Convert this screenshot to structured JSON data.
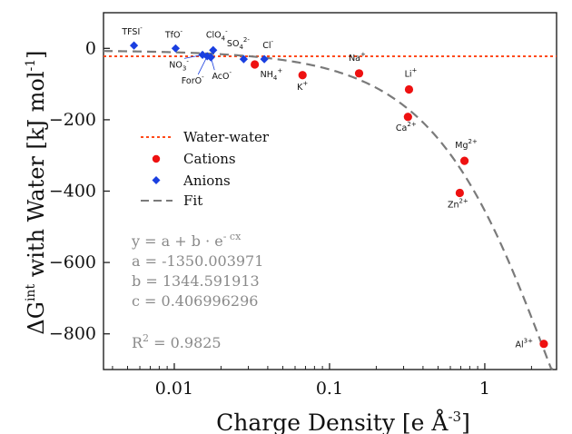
{
  "chart_data": {
    "type": "scatter",
    "xlabel": "Charge Density [e Å",
    "xlabel_sup": "-3",
    "xlabel_end": "]",
    "ylabel_a": "ΔG",
    "ylabel_sup": "int",
    "ylabel_b": " with Water [kJ mol",
    "ylabel_sup2": "-1",
    "ylabel_end": "]",
    "x_scale": "log",
    "xlim": [
      0.0035,
      2.9
    ],
    "ylim": [
      -900,
      100
    ],
    "xticks": [
      {
        "v": 0.01,
        "label": "0.01"
      },
      {
        "v": 0.1,
        "label": "0.1"
      },
      {
        "v": 1,
        "label": "1"
      }
    ],
    "yticks": [
      {
        "v": 0,
        "label": "0"
      },
      {
        "v": -200,
        "label": "−200"
      },
      {
        "v": -400,
        "label": "−400"
      },
      {
        "v": -600,
        "label": "−600"
      },
      {
        "v": -800,
        "label": "−800"
      }
    ],
    "water_water": -22,
    "fit": {
      "a": -1350.003971,
      "b": 1344.591913,
      "c": 0.406996296
    },
    "series": [
      {
        "name": "Cations",
        "color": "#ee1111",
        "marker": "circle",
        "points": [
          {
            "label": "NH",
            "sub": "4",
            "sup": "+",
            "x": 0.033,
            "y": -45
          },
          {
            "label": "K",
            "sub": "",
            "sup": "+",
            "x": 0.067,
            "y": -75
          },
          {
            "label": "Na",
            "sub": "",
            "sup": "+",
            "x": 0.155,
            "y": -70
          },
          {
            "label": "Li",
            "sub": "",
            "sup": "+",
            "x": 0.325,
            "y": -115
          },
          {
            "label": "Ca",
            "sub": "",
            "sup": "2+",
            "x": 0.32,
            "y": -192
          },
          {
            "label": "Mg",
            "sub": "",
            "sup": "2+",
            "x": 0.74,
            "y": -315
          },
          {
            "label": "Zn",
            "sub": "",
            "sup": "2+",
            "x": 0.69,
            "y": -405
          },
          {
            "label": "Al",
            "sub": "",
            "sup": "3+",
            "x": 2.4,
            "y": -828
          }
        ]
      },
      {
        "name": "Anions",
        "color": "#1a3fe0",
        "marker": "diamond",
        "points": [
          {
            "label": "TFSI",
            "sub": "",
            "sup": "-",
            "x": 0.0055,
            "y": 8
          },
          {
            "label": "TfO",
            "sub": "",
            "sup": "-",
            "x": 0.0102,
            "y": 0
          },
          {
            "label": "NO",
            "sub": "3",
            "sup": "-",
            "x": 0.0152,
            "y": -18
          },
          {
            "label": "ForO",
            "sub": "",
            "sup": "-",
            "x": 0.0163,
            "y": -22
          },
          {
            "label": "AcO",
            "sub": "",
            "sup": "-",
            "x": 0.0172,
            "y": -25
          },
          {
            "label": "ClO",
            "sub": "4",
            "sup": "-",
            "x": 0.0178,
            "y": -5
          },
          {
            "label": "SO",
            "sub": "4",
            "sup": "2-",
            "x": 0.028,
            "y": -30
          },
          {
            "label": "Cl",
            "sub": "",
            "sup": "-",
            "x": 0.038,
            "y": -30
          }
        ]
      }
    ],
    "legend": {
      "placement": "left",
      "items": [
        {
          "label": "Water-water",
          "style": "dotted-line",
          "color": "#ff4a1a"
        },
        {
          "label": "Cations",
          "style": "circle",
          "color": "#ee1111"
        },
        {
          "label": "Anions",
          "style": "diamond",
          "color": "#1a3fe0"
        },
        {
          "label": "Fit",
          "style": "dashed-line",
          "color": "#7a7a7a"
        }
      ]
    },
    "annotation": {
      "eq_a": "y = a + b · e",
      "eq_sup": "- cx",
      "a_text": "a = -1350.003971",
      "b_text": "b = 1344.591913",
      "c_text": "c = 0.406996296",
      "r2_a": "R",
      "r2_sup": "2",
      "r2_b": " = 0.9825"
    }
  }
}
